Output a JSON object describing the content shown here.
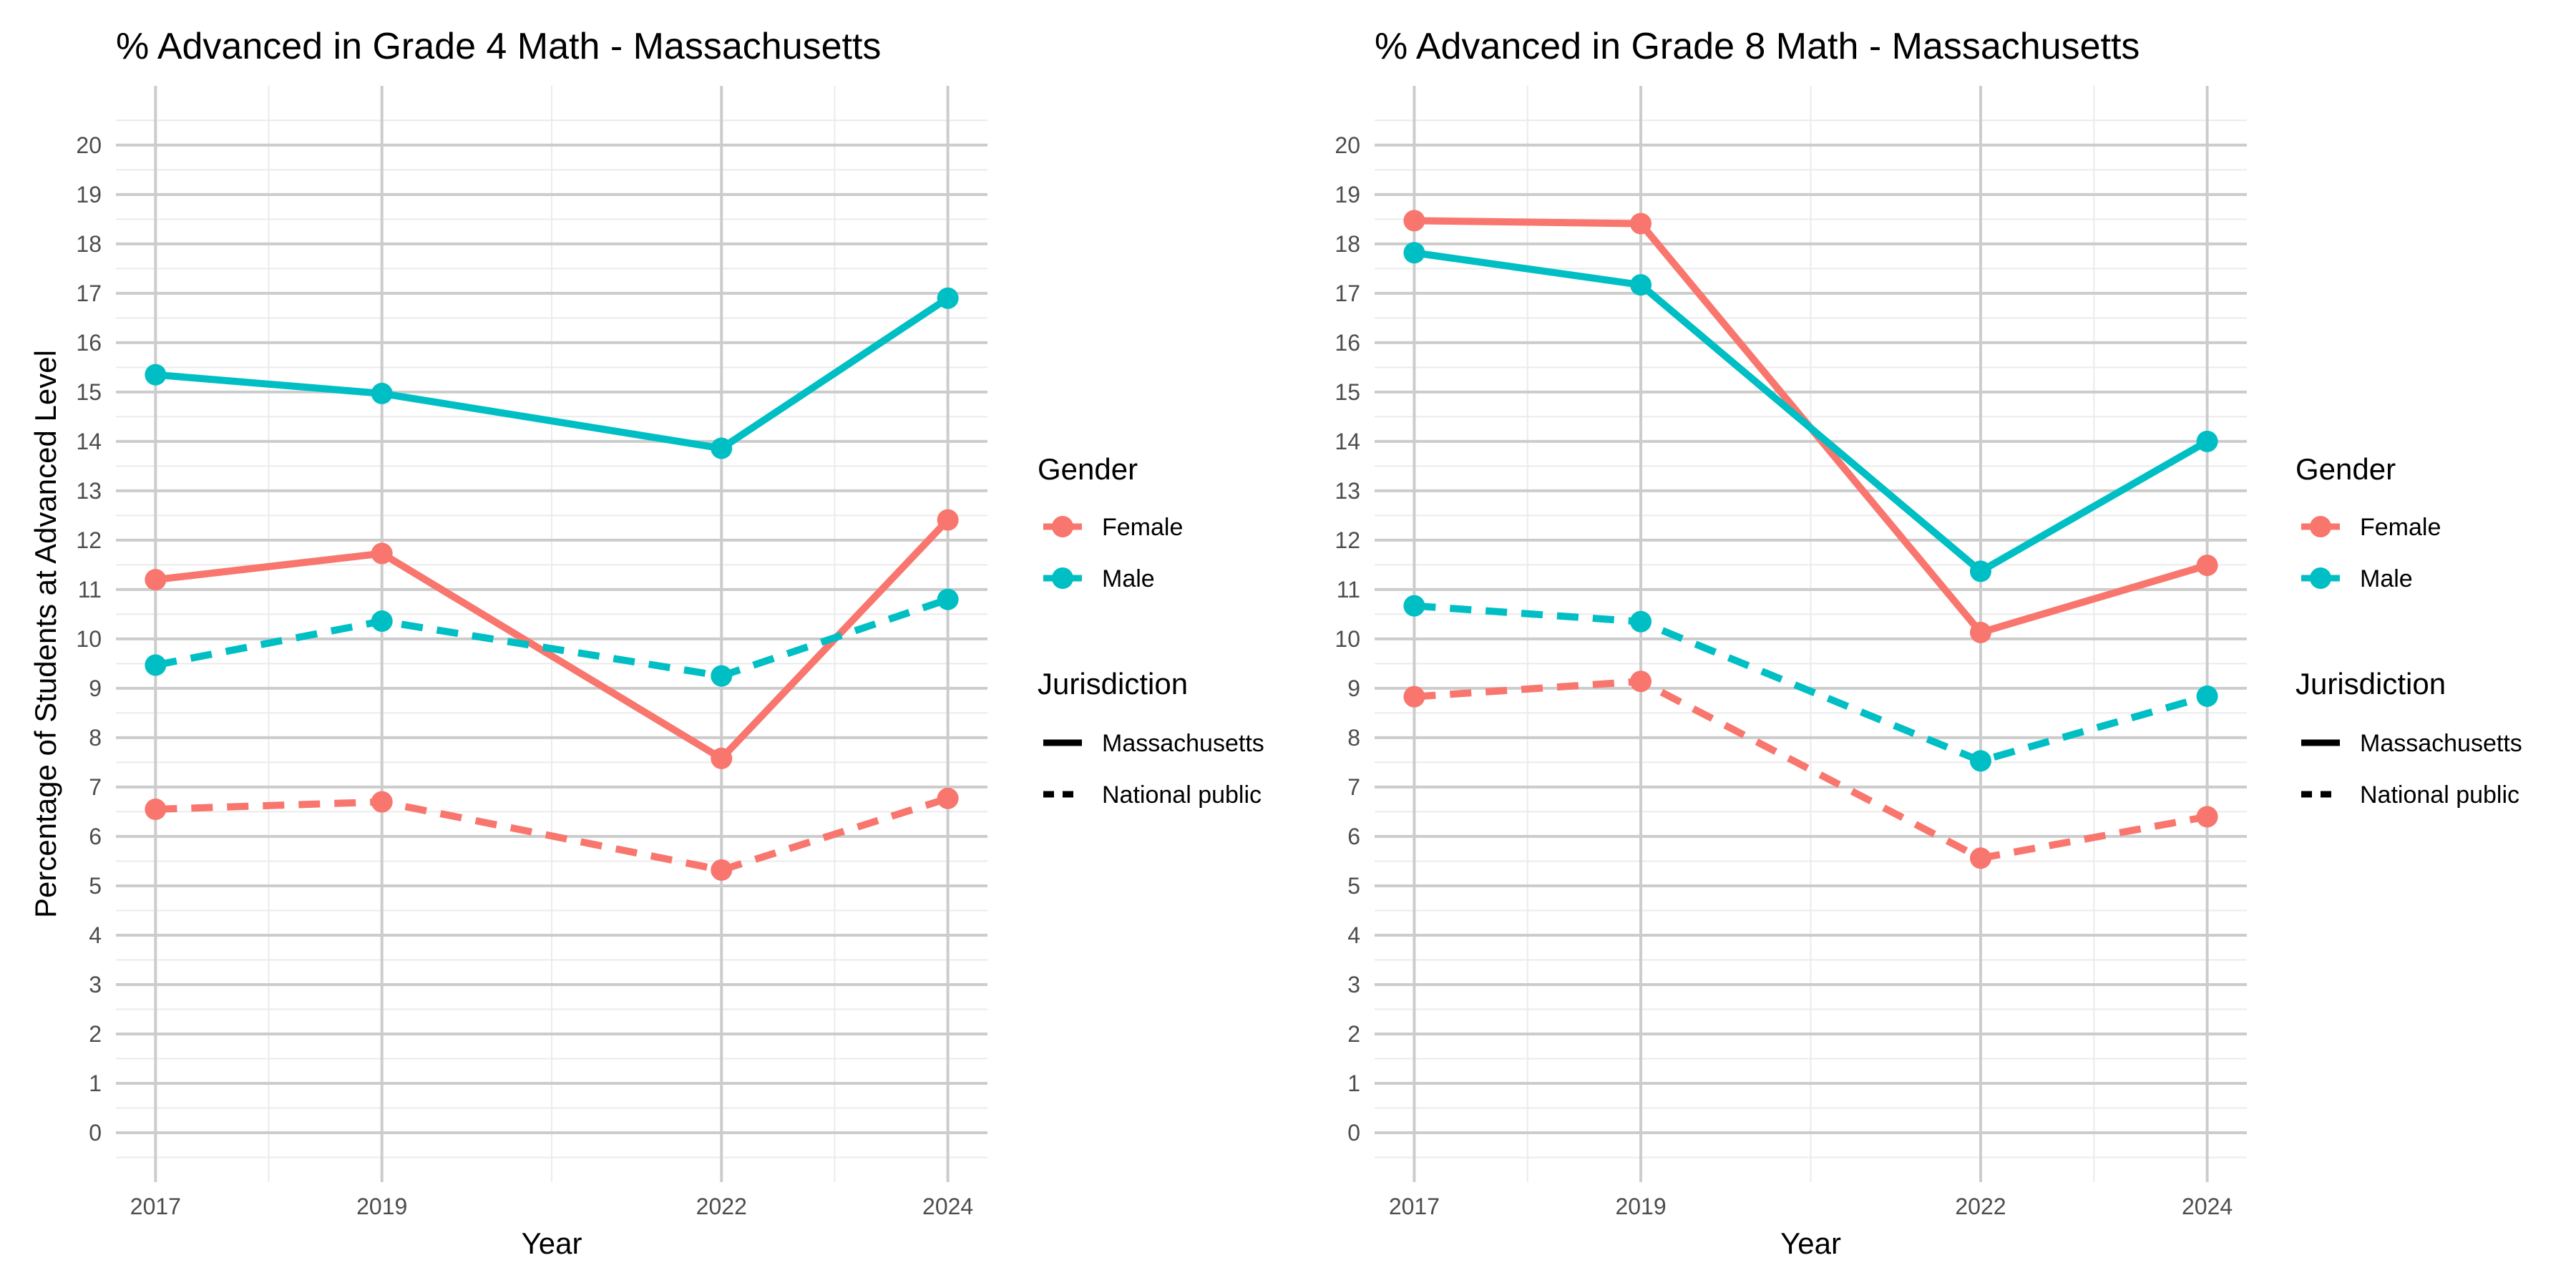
{
  "y_axis_label": "Percentage of Students at Advanced Level",
  "legend": {
    "gender_title": "Gender",
    "gender_items": [
      {
        "label": "Female",
        "color": "#F8766D"
      },
      {
        "label": "Male",
        "color": "#00BFC4"
      }
    ],
    "jurisdiction_title": "Jurisdiction",
    "jurisdiction_items": [
      {
        "label": "Massachusetts",
        "linetype": "solid"
      },
      {
        "label": "National public",
        "linetype": "dashed"
      }
    ]
  },
  "chart_data": [
    {
      "type": "line",
      "title": "% Advanced in Grade 4 Math - Massachusetts",
      "xlabel": "Year",
      "ylabel": "Percentage of Students at Advanced Level",
      "x": [
        2017,
        2019,
        2022,
        2024
      ],
      "xlim": [
        2016.65,
        2024.35
      ],
      "ylim": [
        -1,
        21.2
      ],
      "yticks": [
        0,
        1,
        2,
        3,
        4,
        5,
        6,
        7,
        8,
        9,
        10,
        11,
        12,
        13,
        14,
        15,
        16,
        17,
        18,
        19,
        20
      ],
      "grid": true,
      "series": [
        {
          "gender": "Male",
          "jurisdiction": "Massachusetts",
          "color": "#00BFC4",
          "linetype": "solid",
          "values": [
            15.35,
            14.97,
            13.86,
            16.9
          ]
        },
        {
          "gender": "Female",
          "jurisdiction": "Massachusetts",
          "color": "#F8766D",
          "linetype": "solid",
          "values": [
            11.2,
            11.73,
            7.58,
            12.41
          ]
        },
        {
          "gender": "Male",
          "jurisdiction": "National public",
          "color": "#00BFC4",
          "linetype": "dashed",
          "values": [
            9.47,
            10.36,
            9.25,
            10.8
          ]
        },
        {
          "gender": "Female",
          "jurisdiction": "National public",
          "color": "#F8766D",
          "linetype": "dashed",
          "values": [
            6.55,
            6.7,
            5.32,
            6.77
          ]
        }
      ]
    },
    {
      "type": "line",
      "title": "% Advanced in Grade 8 Math - Massachusetts",
      "xlabel": "Year",
      "ylabel": "",
      "x": [
        2017,
        2019,
        2022,
        2024
      ],
      "xlim": [
        2016.65,
        2024.35
      ],
      "ylim": [
        -1,
        21.2
      ],
      "yticks": [
        0,
        1,
        2,
        3,
        4,
        5,
        6,
        7,
        8,
        9,
        10,
        11,
        12,
        13,
        14,
        15,
        16,
        17,
        18,
        19,
        20
      ],
      "grid": true,
      "series": [
        {
          "gender": "Female",
          "jurisdiction": "Massachusetts",
          "color": "#F8766D",
          "linetype": "solid",
          "values": [
            18.47,
            18.41,
            10.13,
            11.49
          ]
        },
        {
          "gender": "Male",
          "jurisdiction": "Massachusetts",
          "color": "#00BFC4",
          "linetype": "solid",
          "values": [
            17.82,
            17.17,
            11.37,
            14.0
          ]
        },
        {
          "gender": "Male",
          "jurisdiction": "National public",
          "color": "#00BFC4",
          "linetype": "dashed",
          "values": [
            10.67,
            10.35,
            7.53,
            8.84
          ]
        },
        {
          "gender": "Female",
          "jurisdiction": "National public",
          "color": "#F8766D",
          "linetype": "dashed",
          "values": [
            8.83,
            9.14,
            5.56,
            6.4
          ]
        }
      ]
    }
  ]
}
